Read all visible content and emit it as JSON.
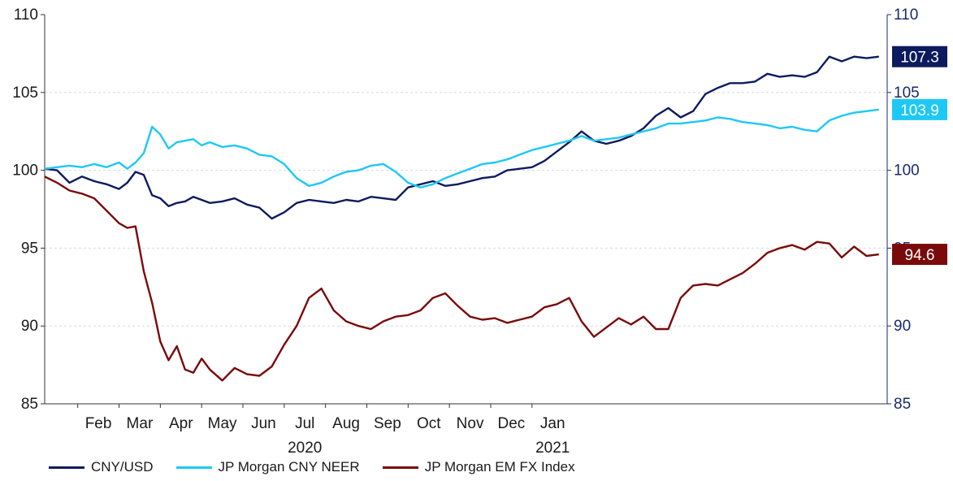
{
  "chart_data": {
    "type": "line",
    "title": "",
    "xlabel": "",
    "ylabel": "",
    "ylim": [
      85,
      110
    ],
    "y_ticks": [
      "85",
      "90",
      "95",
      "100",
      "105",
      "110"
    ],
    "right_ylim": [
      85,
      110
    ],
    "right_y_ticks": [
      "85",
      "90",
      "95",
      "100",
      "105",
      "110"
    ],
    "month_ticks": [
      {
        "label": "Feb",
        "month": 1
      },
      {
        "label": "Mar",
        "month": 2
      },
      {
        "label": "Apr",
        "month": 3
      },
      {
        "label": "May",
        "month": 4
      },
      {
        "label": "Jun",
        "month": 5
      },
      {
        "label": "Jul",
        "month": 6
      },
      {
        "label": "Aug",
        "month": 7
      },
      {
        "label": "Sep",
        "month": 8
      },
      {
        "label": "Oct",
        "month": 9
      },
      {
        "label": "Nov",
        "month": 10
      },
      {
        "label": "Dec",
        "month": 11
      },
      {
        "label": "Jan",
        "month": 12
      }
    ],
    "year_labels": [
      {
        "label": "2020",
        "month": 6
      },
      {
        "label": "2021",
        "month": 12
      }
    ],
    "x_unit": "months since 2020-01-01 (data approximated)",
    "series": [
      {
        "name": "CNY/USD",
        "color": "#0d1b5e",
        "end_label": "107.3",
        "points": [
          [
            0.0,
            100.1
          ],
          [
            0.3,
            100.0
          ],
          [
            0.6,
            99.2
          ],
          [
            0.9,
            99.6
          ],
          [
            1.2,
            99.3
          ],
          [
            1.5,
            99.1
          ],
          [
            1.8,
            98.8
          ],
          [
            2.0,
            99.2
          ],
          [
            2.2,
            99.9
          ],
          [
            2.4,
            99.7
          ],
          [
            2.6,
            98.4
          ],
          [
            2.8,
            98.2
          ],
          [
            3.0,
            97.7
          ],
          [
            3.2,
            97.9
          ],
          [
            3.4,
            98.0
          ],
          [
            3.6,
            98.3
          ],
          [
            3.8,
            98.1
          ],
          [
            4.0,
            97.9
          ],
          [
            4.3,
            98.0
          ],
          [
            4.6,
            98.2
          ],
          [
            4.9,
            97.8
          ],
          [
            5.2,
            97.6
          ],
          [
            5.5,
            96.9
          ],
          [
            5.8,
            97.3
          ],
          [
            6.1,
            97.9
          ],
          [
            6.4,
            98.1
          ],
          [
            6.7,
            98.0
          ],
          [
            7.0,
            97.9
          ],
          [
            7.3,
            98.1
          ],
          [
            7.6,
            98.0
          ],
          [
            7.9,
            98.3
          ],
          [
            8.2,
            98.2
          ],
          [
            8.5,
            98.1
          ],
          [
            8.8,
            98.9
          ],
          [
            9.1,
            99.1
          ],
          [
            9.4,
            99.3
          ],
          [
            9.7,
            99.0
          ],
          [
            10.0,
            99.1
          ],
          [
            10.3,
            99.3
          ],
          [
            10.6,
            99.5
          ],
          [
            10.9,
            99.6
          ],
          [
            11.2,
            100.0
          ],
          [
            11.5,
            100.1
          ],
          [
            11.8,
            100.2
          ],
          [
            12.1,
            100.6
          ],
          [
            12.4,
            101.2
          ],
          [
            12.7,
            101.8
          ],
          [
            13.0,
            102.5
          ],
          [
            13.3,
            101.9
          ],
          [
            13.6,
            101.7
          ],
          [
            13.9,
            101.9
          ],
          [
            14.2,
            102.2
          ],
          [
            14.5,
            102.7
          ],
          [
            14.8,
            103.5
          ],
          [
            15.1,
            104.0
          ],
          [
            15.4,
            103.4
          ],
          [
            15.7,
            103.8
          ],
          [
            16.0,
            104.9
          ],
          [
            16.3,
            105.3
          ],
          [
            16.6,
            105.6
          ],
          [
            16.9,
            105.6
          ],
          [
            17.2,
            105.7
          ],
          [
            17.5,
            106.2
          ],
          [
            17.8,
            106.0
          ],
          [
            18.1,
            106.1
          ],
          [
            18.4,
            106.0
          ],
          [
            18.7,
            106.3
          ],
          [
            19.0,
            107.3
          ],
          [
            19.3,
            107.0
          ],
          [
            19.6,
            107.3
          ],
          [
            19.9,
            107.2
          ],
          [
            20.2,
            107.3
          ]
        ]
      },
      {
        "name": "JP Morgan CNY NEER",
        "color": "#1ec8f5",
        "end_label": "103.9",
        "points": [
          [
            0.0,
            100.1
          ],
          [
            0.3,
            100.2
          ],
          [
            0.6,
            100.3
          ],
          [
            0.9,
            100.2
          ],
          [
            1.2,
            100.4
          ],
          [
            1.5,
            100.2
          ],
          [
            1.8,
            100.5
          ],
          [
            2.0,
            100.1
          ],
          [
            2.2,
            100.5
          ],
          [
            2.4,
            101.1
          ],
          [
            2.6,
            102.8
          ],
          [
            2.8,
            102.3
          ],
          [
            3.0,
            101.4
          ],
          [
            3.2,
            101.8
          ],
          [
            3.4,
            101.9
          ],
          [
            3.6,
            102.0
          ],
          [
            3.8,
            101.6
          ],
          [
            4.0,
            101.8
          ],
          [
            4.3,
            101.5
          ],
          [
            4.6,
            101.6
          ],
          [
            4.9,
            101.4
          ],
          [
            5.2,
            101.0
          ],
          [
            5.5,
            100.9
          ],
          [
            5.8,
            100.4
          ],
          [
            6.1,
            99.5
          ],
          [
            6.4,
            99.0
          ],
          [
            6.7,
            99.2
          ],
          [
            7.0,
            99.6
          ],
          [
            7.3,
            99.9
          ],
          [
            7.6,
            100.0
          ],
          [
            7.9,
            100.3
          ],
          [
            8.2,
            100.4
          ],
          [
            8.5,
            99.9
          ],
          [
            8.8,
            99.2
          ],
          [
            9.1,
            98.9
          ],
          [
            9.4,
            99.1
          ],
          [
            9.7,
            99.5
          ],
          [
            10.0,
            99.8
          ],
          [
            10.3,
            100.1
          ],
          [
            10.6,
            100.4
          ],
          [
            10.9,
            100.5
          ],
          [
            11.2,
            100.7
          ],
          [
            11.5,
            101.0
          ],
          [
            11.8,
            101.3
          ],
          [
            12.1,
            101.5
          ],
          [
            12.4,
            101.7
          ],
          [
            12.7,
            101.9
          ],
          [
            13.0,
            102.2
          ],
          [
            13.3,
            101.9
          ],
          [
            13.6,
            102.0
          ],
          [
            13.9,
            102.1
          ],
          [
            14.2,
            102.3
          ],
          [
            14.5,
            102.5
          ],
          [
            14.8,
            102.7
          ],
          [
            15.1,
            103.0
          ],
          [
            15.4,
            103.0
          ],
          [
            15.7,
            103.1
          ],
          [
            16.0,
            103.2
          ],
          [
            16.3,
            103.4
          ],
          [
            16.6,
            103.3
          ],
          [
            16.9,
            103.1
          ],
          [
            17.2,
            103.0
          ],
          [
            17.5,
            102.9
          ],
          [
            17.8,
            102.7
          ],
          [
            18.1,
            102.8
          ],
          [
            18.4,
            102.6
          ],
          [
            18.7,
            102.5
          ],
          [
            19.0,
            103.2
          ],
          [
            19.3,
            103.5
          ],
          [
            19.6,
            103.7
          ],
          [
            19.9,
            103.8
          ],
          [
            20.2,
            103.9
          ]
        ]
      },
      {
        "name": "JP Morgan EM FX Index",
        "color": "#7a0a0a",
        "end_label": "94.6",
        "points": [
          [
            0.0,
            99.6
          ],
          [
            0.3,
            99.2
          ],
          [
            0.6,
            98.7
          ],
          [
            0.9,
            98.5
          ],
          [
            1.2,
            98.2
          ],
          [
            1.5,
            97.4
          ],
          [
            1.8,
            96.6
          ],
          [
            2.0,
            96.3
          ],
          [
            2.2,
            96.4
          ],
          [
            2.4,
            93.5
          ],
          [
            2.6,
            91.5
          ],
          [
            2.8,
            89.0
          ],
          [
            3.0,
            87.8
          ],
          [
            3.2,
            88.7
          ],
          [
            3.4,
            87.2
          ],
          [
            3.6,
            87.0
          ],
          [
            3.8,
            87.9
          ],
          [
            4.0,
            87.2
          ],
          [
            4.3,
            86.5
          ],
          [
            4.6,
            87.3
          ],
          [
            4.9,
            86.9
          ],
          [
            5.2,
            86.8
          ],
          [
            5.5,
            87.4
          ],
          [
            5.8,
            88.8
          ],
          [
            6.1,
            90.0
          ],
          [
            6.4,
            91.8
          ],
          [
            6.7,
            92.4
          ],
          [
            7.0,
            91.0
          ],
          [
            7.3,
            90.3
          ],
          [
            7.6,
            90.0
          ],
          [
            7.9,
            89.8
          ],
          [
            8.2,
            90.3
          ],
          [
            8.5,
            90.6
          ],
          [
            8.8,
            90.7
          ],
          [
            9.1,
            91.0
          ],
          [
            9.4,
            91.8
          ],
          [
            9.7,
            92.1
          ],
          [
            10.0,
            91.3
          ],
          [
            10.3,
            90.6
          ],
          [
            10.6,
            90.4
          ],
          [
            10.9,
            90.5
          ],
          [
            11.2,
            90.2
          ],
          [
            11.5,
            90.4
          ],
          [
            11.8,
            90.6
          ],
          [
            12.1,
            91.2
          ],
          [
            12.4,
            91.4
          ],
          [
            12.7,
            91.8
          ],
          [
            13.0,
            90.3
          ],
          [
            13.3,
            89.3
          ],
          [
            13.6,
            89.9
          ],
          [
            13.9,
            90.5
          ],
          [
            14.2,
            90.1
          ],
          [
            14.5,
            90.6
          ],
          [
            14.8,
            89.8
          ],
          [
            15.1,
            89.8
          ],
          [
            15.4,
            91.8
          ],
          [
            15.7,
            92.6
          ],
          [
            16.0,
            92.7
          ],
          [
            16.3,
            92.6
          ],
          [
            16.6,
            93.0
          ],
          [
            16.9,
            93.4
          ],
          [
            17.2,
            94.0
          ],
          [
            17.5,
            94.7
          ],
          [
            17.8,
            95.0
          ],
          [
            18.1,
            95.2
          ],
          [
            18.4,
            94.9
          ],
          [
            18.7,
            95.4
          ],
          [
            19.0,
            95.3
          ],
          [
            19.3,
            94.4
          ],
          [
            19.6,
            95.1
          ],
          [
            19.9,
            94.5
          ],
          [
            20.2,
            94.6
          ]
        ]
      }
    ],
    "legend_position": "bottom-left",
    "grid": true
  }
}
